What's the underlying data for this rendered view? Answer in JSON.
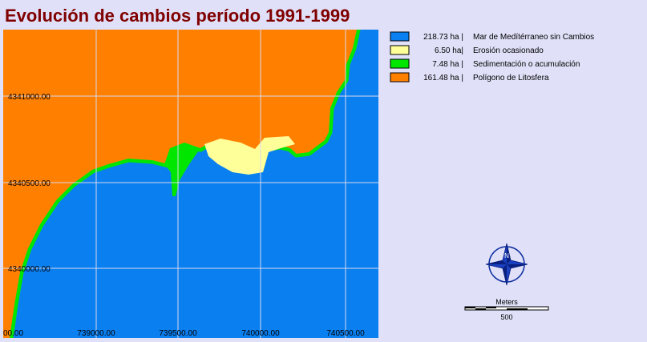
{
  "header": {
    "title": "Evolución de cambios período 1991-1999"
  },
  "legend": [
    {
      "area": "218.73 ha |",
      "label": "Mar de Medítérraneo sin Cambios",
      "color": "#0a7ff0"
    },
    {
      "area": "6.50  ha|",
      "label": "Erosión ocasionado",
      "color": "#ffff99"
    },
    {
      "area": "7.48 ha |",
      "label": "Sedimentación o acumulación",
      "color": "#00e600"
    },
    {
      "area": "161.48 ha |",
      "label": "Polígono de Litosfera",
      "color": "#ff8000"
    }
  ],
  "grid": {
    "y_labels": [
      "4341000.00",
      "4340500.00",
      "4340000.00"
    ],
    "x_labels": [
      "00.00",
      "739000.00",
      "739500.00",
      "740000.00",
      "740500.00"
    ]
  },
  "north_arrow": {
    "label": "N"
  },
  "scale_bar": {
    "unit": "Meters",
    "label": "500"
  }
}
